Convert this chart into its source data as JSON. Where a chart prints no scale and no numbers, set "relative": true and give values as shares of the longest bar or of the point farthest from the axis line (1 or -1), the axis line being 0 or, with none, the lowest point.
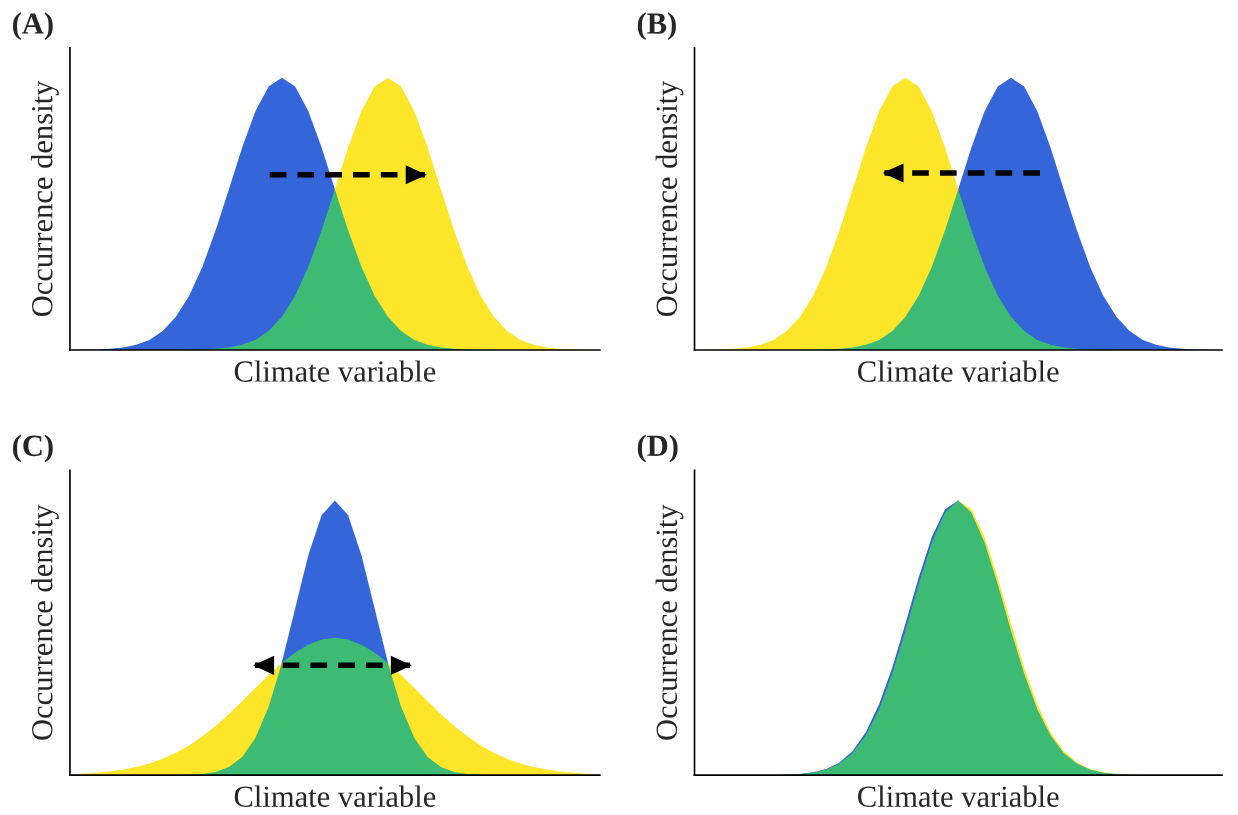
{
  "chart_data": [
    {
      "type": "area",
      "title": "(A)",
      "xlabel": "Climate variable",
      "ylabel": "Occurrence density",
      "relative": true,
      "grid": false,
      "categories": [
        null,
        null,
        null,
        null,
        null,
        null,
        null,
        null,
        null,
        null,
        null,
        null,
        null,
        null,
        null,
        null,
        null,
        null,
        null,
        null,
        null,
        null,
        null,
        null,
        null,
        null,
        null,
        null,
        null,
        null,
        null,
        null,
        null,
        null,
        null,
        null,
        null,
        null,
        null,
        null,
        null
      ],
      "series": [
        {
          "color": "#3465d9",
          "values": [
            0,
            0.001,
            0.002,
            0.004,
            0.009,
            0.019,
            0.037,
            0.07,
            0.122,
            0.199,
            0.306,
            0.44,
            0.591,
            0.744,
            0.877,
            0.968,
            1,
            0.968,
            0.877,
            0.744,
            0.591,
            null,
            null,
            null,
            null,
            null,
            null,
            null,
            null,
            null,
            null,
            null,
            null,
            null,
            null,
            null,
            null,
            null,
            null,
            null,
            null
          ]
        },
        {
          "color": "#fde52a",
          "values": [
            null,
            null,
            null,
            null,
            null,
            null,
            null,
            null,
            null,
            null,
            null,
            null,
            null,
            null,
            null,
            null,
            null,
            null,
            null,
            null,
            0.591,
            0.744,
            0.877,
            0.968,
            1,
            0.968,
            0.877,
            0.744,
            0.591,
            0.44,
            0.306,
            0.199,
            0.122,
            0.07,
            0.037,
            0.019,
            0.009,
            0.004,
            0.002,
            0.001,
            0
          ]
        },
        {
          "color": "#3dbb74",
          "values": [
            0,
            0,
            0,
            0,
            0,
            0,
            0,
            0,
            0,
            0.001,
            0.002,
            0.004,
            0.009,
            0.019,
            0.037,
            0.07,
            0.122,
            0.199,
            0.306,
            0.44,
            0.591,
            0.44,
            0.306,
            0.199,
            0.122,
            0.07,
            0.037,
            0.019,
            0.009,
            0.004,
            0.002,
            0.001,
            0,
            0,
            0,
            0,
            0,
            0,
            0,
            0,
            0
          ]
        }
      ]
    },
    {
      "type": "area",
      "title": "(B)",
      "xlabel": "Climate variable",
      "ylabel": "Occurrence density",
      "relative": true,
      "grid": false,
      "categories": [
        null,
        null,
        null,
        null,
        null,
        null,
        null,
        null,
        null,
        null,
        null,
        null,
        null,
        null,
        null,
        null,
        null,
        null,
        null,
        null,
        null,
        null,
        null,
        null,
        null,
        null,
        null,
        null,
        null,
        null,
        null,
        null,
        null,
        null,
        null,
        null,
        null,
        null,
        null,
        null,
        null
      ],
      "series": [
        {
          "color": "#3465d9",
          "values": [
            null,
            null,
            null,
            null,
            null,
            null,
            null,
            null,
            null,
            null,
            null,
            null,
            null,
            null,
            null,
            null,
            null,
            null,
            null,
            null,
            0.591,
            0.744,
            0.877,
            0.968,
            1,
            0.968,
            0.877,
            0.744,
            0.591,
            0.44,
            0.306,
            0.199,
            0.122,
            0.07,
            0.037,
            0.019,
            0.009,
            0.004,
            0.002,
            0.001,
            0
          ]
        },
        {
          "color": "#fde52a",
          "values": [
            0,
            0.001,
            0.002,
            0.004,
            0.009,
            0.019,
            0.037,
            0.07,
            0.122,
            0.199,
            0.306,
            0.44,
            0.591,
            0.744,
            0.877,
            0.968,
            1,
            0.968,
            0.877,
            0.744,
            0.591,
            null,
            null,
            null,
            null,
            null,
            null,
            null,
            null,
            null,
            null,
            null,
            null,
            null,
            null,
            null,
            null,
            null,
            null,
            null,
            null
          ]
        },
        {
          "color": "#3dbb74",
          "values": [
            0,
            0,
            0,
            0,
            0,
            0,
            0,
            0,
            0,
            0.001,
            0.002,
            0.004,
            0.009,
            0.019,
            0.037,
            0.07,
            0.122,
            0.199,
            0.306,
            0.44,
            0.591,
            0.44,
            0.306,
            0.199,
            0.122,
            0.07,
            0.037,
            0.019,
            0.009,
            0.004,
            0.002,
            0.001,
            0,
            0,
            0,
            0,
            0,
            0,
            0,
            0,
            0
          ]
        }
      ]
    },
    {
      "type": "area",
      "title": "(C)",
      "xlabel": "Climate variable",
      "ylabel": "Occurrence density",
      "relative": true,
      "grid": false,
      "categories": [
        null,
        null,
        null,
        null,
        null,
        null,
        null,
        null,
        null,
        null,
        null,
        null,
        null,
        null,
        null,
        null,
        null,
        null,
        null,
        null,
        null,
        null,
        null,
        null,
        null,
        null,
        null,
        null,
        null,
        null,
        null,
        null,
        null,
        null,
        null,
        null,
        null,
        null,
        null,
        null,
        null
      ],
      "series": [
        {
          "color": "#3465d9",
          "values": [
            null,
            null,
            null,
            null,
            null,
            null,
            null,
            null,
            null,
            null,
            null,
            null,
            null,
            null,
            null,
            null,
            0.411,
            0.607,
            0.801,
            0.946,
            1,
            0.946,
            0.801,
            0.607,
            0.411,
            null,
            null,
            null,
            null,
            null,
            null,
            null,
            null,
            null,
            null,
            null,
            null,
            null,
            null,
            null,
            null
          ]
        },
        {
          "color": "#fde52a",
          "values": [
            0.003,
            0.005,
            0.008,
            0.013,
            0.02,
            0.029,
            0.042,
            0.059,
            0.081,
            0.108,
            0.141,
            0.179,
            0.222,
            0.269,
            0.317,
            0.364,
            0.408,
            null,
            null,
            null,
            null,
            null,
            null,
            null,
            0.408,
            0.364,
            0.317,
            0.269,
            0.222,
            0.179,
            0.141,
            0.108,
            0.081,
            0.059,
            0.042,
            0.029,
            0.02,
            0.013,
            0.008,
            0.005,
            0.003
          ]
        },
        {
          "color": "#3dbb74",
          "values": [
            0,
            0,
            0,
            0,
            0,
            0,
            0,
            0,
            0,
            0.001,
            0.004,
            0.011,
            0.029,
            0.066,
            0.135,
            0.249,
            0.408,
            0.446,
            0.475,
            0.494,
            0.5,
            0.494,
            0.475,
            0.446,
            0.408,
            0.249,
            0.135,
            0.066,
            0.029,
            0.011,
            0.004,
            0.001,
            0,
            0,
            0,
            0,
            0,
            0,
            0,
            0,
            0
          ]
        }
      ]
    },
    {
      "type": "area",
      "title": "(D)",
      "xlabel": "Climate variable",
      "ylabel": "Occurrence density",
      "relative": true,
      "grid": false,
      "categories": [
        null,
        null,
        null,
        null,
        null,
        null,
        null,
        null,
        null,
        null,
        null,
        null,
        null,
        null,
        null,
        null,
        null,
        null,
        null,
        null,
        null,
        null,
        null,
        null,
        null,
        null,
        null,
        null,
        null,
        null,
        null,
        null,
        null,
        null,
        null,
        null,
        null,
        null,
        null,
        null,
        null
      ],
      "series": [
        {
          "color": "#3465d9",
          "values": [
            0,
            0,
            0,
            0,
            0,
            0,
            0,
            0.001,
            0.004,
            0.01,
            0.022,
            0.046,
            0.088,
            0.157,
            0.258,
            0.392,
            0.552,
            0.719,
            0.867,
            0.968,
            1,
            null,
            null,
            null,
            null,
            null,
            null,
            null,
            null,
            null,
            null,
            null,
            null,
            null,
            null,
            null,
            null,
            null,
            null,
            null,
            null
          ]
        },
        {
          "color": "#fde52a",
          "values": [
            null,
            null,
            null,
            null,
            null,
            null,
            null,
            null,
            null,
            null,
            null,
            null,
            null,
            null,
            null,
            null,
            null,
            null,
            null,
            null,
            1,
            0.968,
            0.867,
            0.719,
            0.552,
            0.392,
            0.258,
            0.157,
            0.088,
            0.046,
            0.022,
            0.01,
            0.004,
            0.001,
            0,
            0,
            0,
            0,
            0,
            0,
            0
          ]
        },
        {
          "color": "#3dbb74",
          "values": [
            0,
            0,
            0,
            0,
            0,
            0,
            0,
            0.001,
            0.004,
            0.008,
            0.02,
            0.042,
            0.08,
            0.145,
            0.24,
            0.37,
            0.526,
            0.695,
            0.847,
            0.956,
            1,
            0.956,
            0.847,
            0.695,
            0.526,
            0.37,
            0.24,
            0.145,
            0.08,
            0.042,
            0.02,
            0.008,
            0.004,
            0.001,
            0,
            0,
            0,
            0,
            0,
            0,
            0
          ]
        }
      ]
    }
  ]
}
